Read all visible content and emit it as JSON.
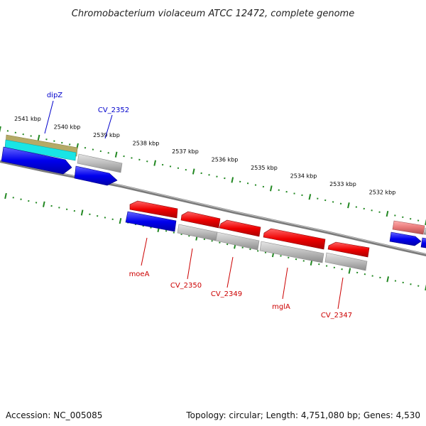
{
  "title": "Chromobacterium violaceum ATCC 12472, complete genome",
  "footer": {
    "accession": "Accession: NC_005085",
    "summary": "Topology: circular; Length: 4,751,080 bp; Genes: 4,530"
  },
  "ticks": [
    "2541 kbp",
    "2540 kbp",
    "2539 kbp",
    "2538 kbp",
    "2537 kbp",
    "2536 kbp",
    "2535 kbp",
    "2534 kbp",
    "2533 kbp",
    "2532 kbp"
  ],
  "top_labels": [
    "dipZ",
    "CV_2352"
  ],
  "bottom_labels": [
    "moeA",
    "CV_2350",
    "CV_2349",
    "mglA",
    "CV_2347"
  ],
  "colors": {
    "forward_gene": "#ee0000",
    "reverse_gene": "#0000ee",
    "pseudo_gene": "#b8b8b8",
    "backbone": "#7a7a7a",
    "tick_green": "#228822",
    "label_top": "#0000cc",
    "label_bottom": "#cc0000"
  }
}
